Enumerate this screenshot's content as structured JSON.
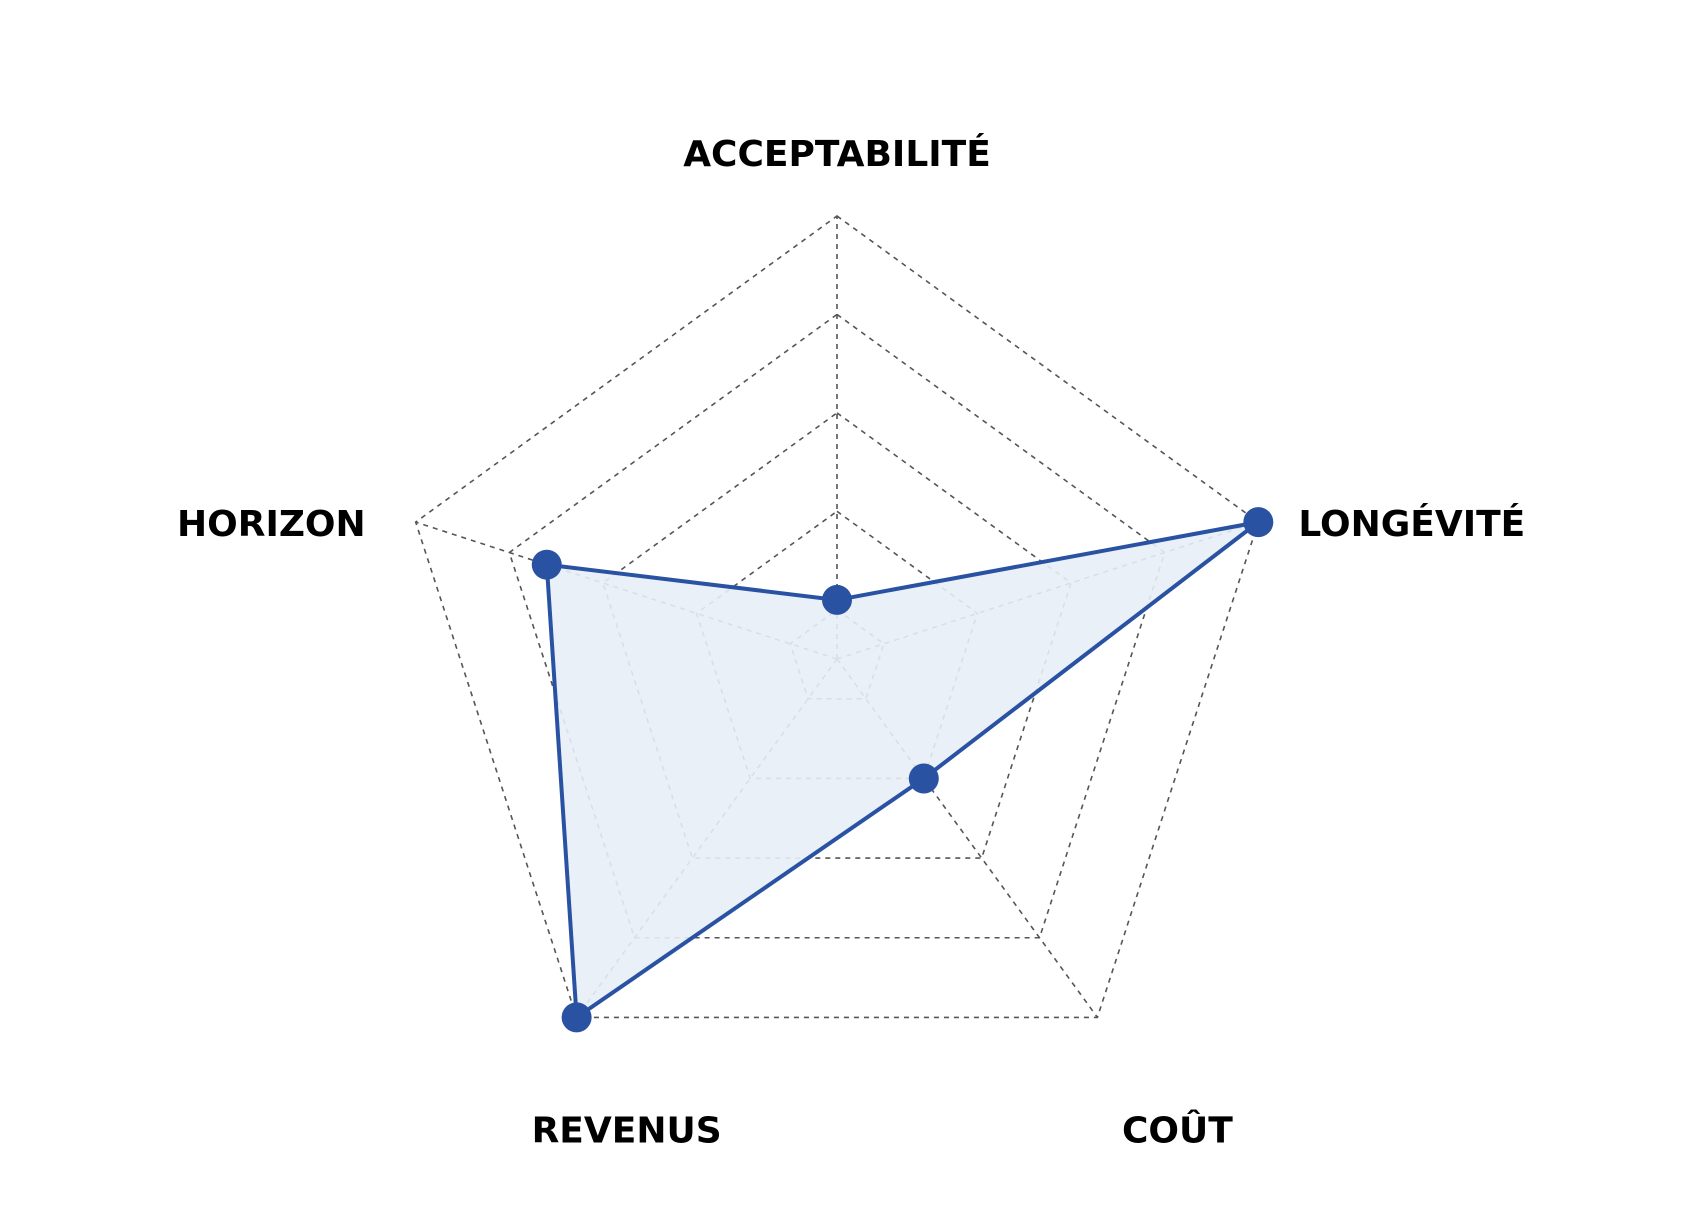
{
  "chart_data": {
    "type": "radar",
    "categories": [
      "ACCEPTABILITÉ",
      "LONGÉVITÉ",
      "COÛT",
      "REVENUS",
      "HORIZON"
    ],
    "values": [
      1.1,
      5,
      2,
      5,
      3.6
    ],
    "color": "#2a52a3",
    "fill_color": "#e8eef6",
    "ylim": [
      0.5,
      5
    ],
    "yticks": [
      1,
      2,
      3,
      4,
      5
    ],
    "grid": true
  }
}
